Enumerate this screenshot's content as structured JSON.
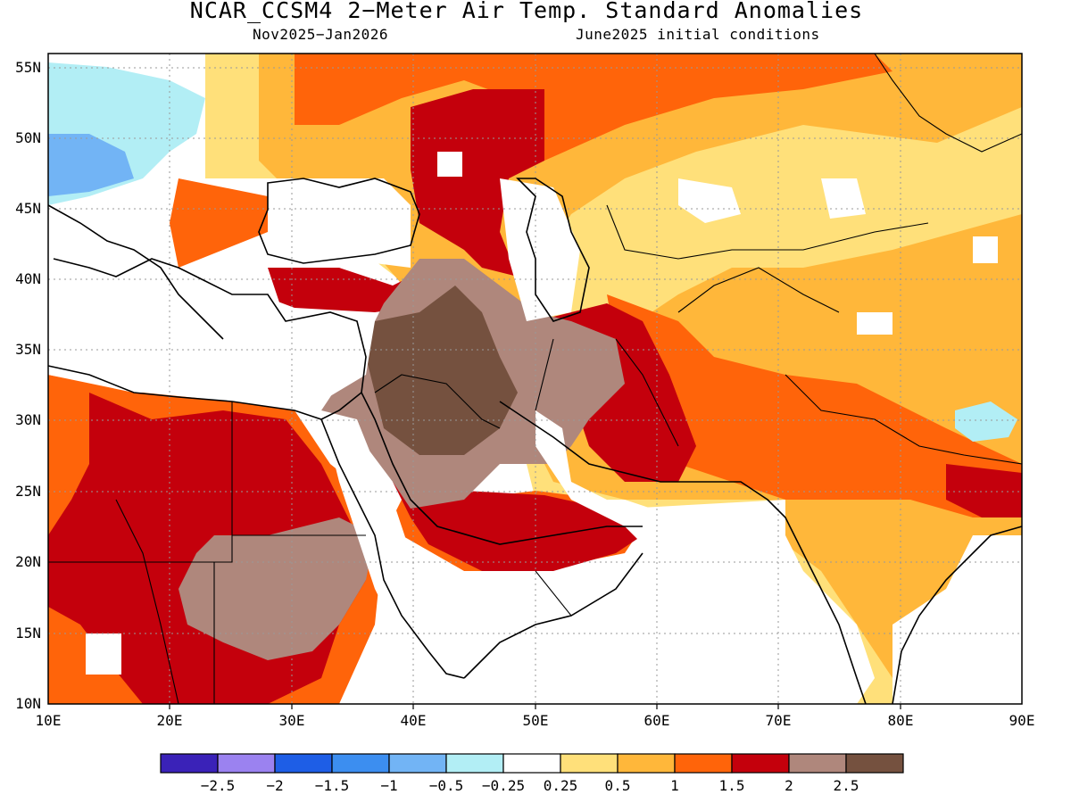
{
  "header": {
    "title": "NCAR_CCSM4 2−Meter Air Temp. Standard Anomalies",
    "period": "Nov2025−Jan2026",
    "init": "June2025 initial conditions"
  },
  "map": {
    "lat_labels": [
      "55N",
      "50N",
      "45N",
      "40N",
      "35N",
      "30N",
      "25N",
      "20N",
      "15N",
      "10N"
    ],
    "lon_labels": [
      "10E",
      "20E",
      "30E",
      "40E",
      "50E",
      "60E",
      "70E",
      "80E",
      "90E"
    ],
    "lat_range": [
      10,
      56
    ],
    "lon_range": [
      10,
      90
    ]
  },
  "colorbar": {
    "colors": [
      "#3a22b8",
      "#9b82f0",
      "#1e5ee6",
      "#3c8ef0",
      "#72b4f5",
      "#b2eef5",
      "#ffffff",
      "#ffe07a",
      "#ffb73a",
      "#ff640a",
      "#c4000c",
      "#af877c",
      "#75513f"
    ],
    "labels": [
      "−2.5",
      "−2",
      "−1.5",
      "−1",
      "−0.5",
      "−0.25",
      "0.25",
      "0.5",
      "1",
      "1.5",
      "2",
      "2.5"
    ]
  },
  "legend_colors": {
    "cool_light": "#b2eef5",
    "cool_mid": "#72b4f5",
    "warm_light": "#ffe07a",
    "warm_mid": "#ffb73a",
    "warm_orange": "#ff640a",
    "warm_red": "#c4000c",
    "brown_light": "#af877c",
    "brown_dark": "#75513f"
  }
}
